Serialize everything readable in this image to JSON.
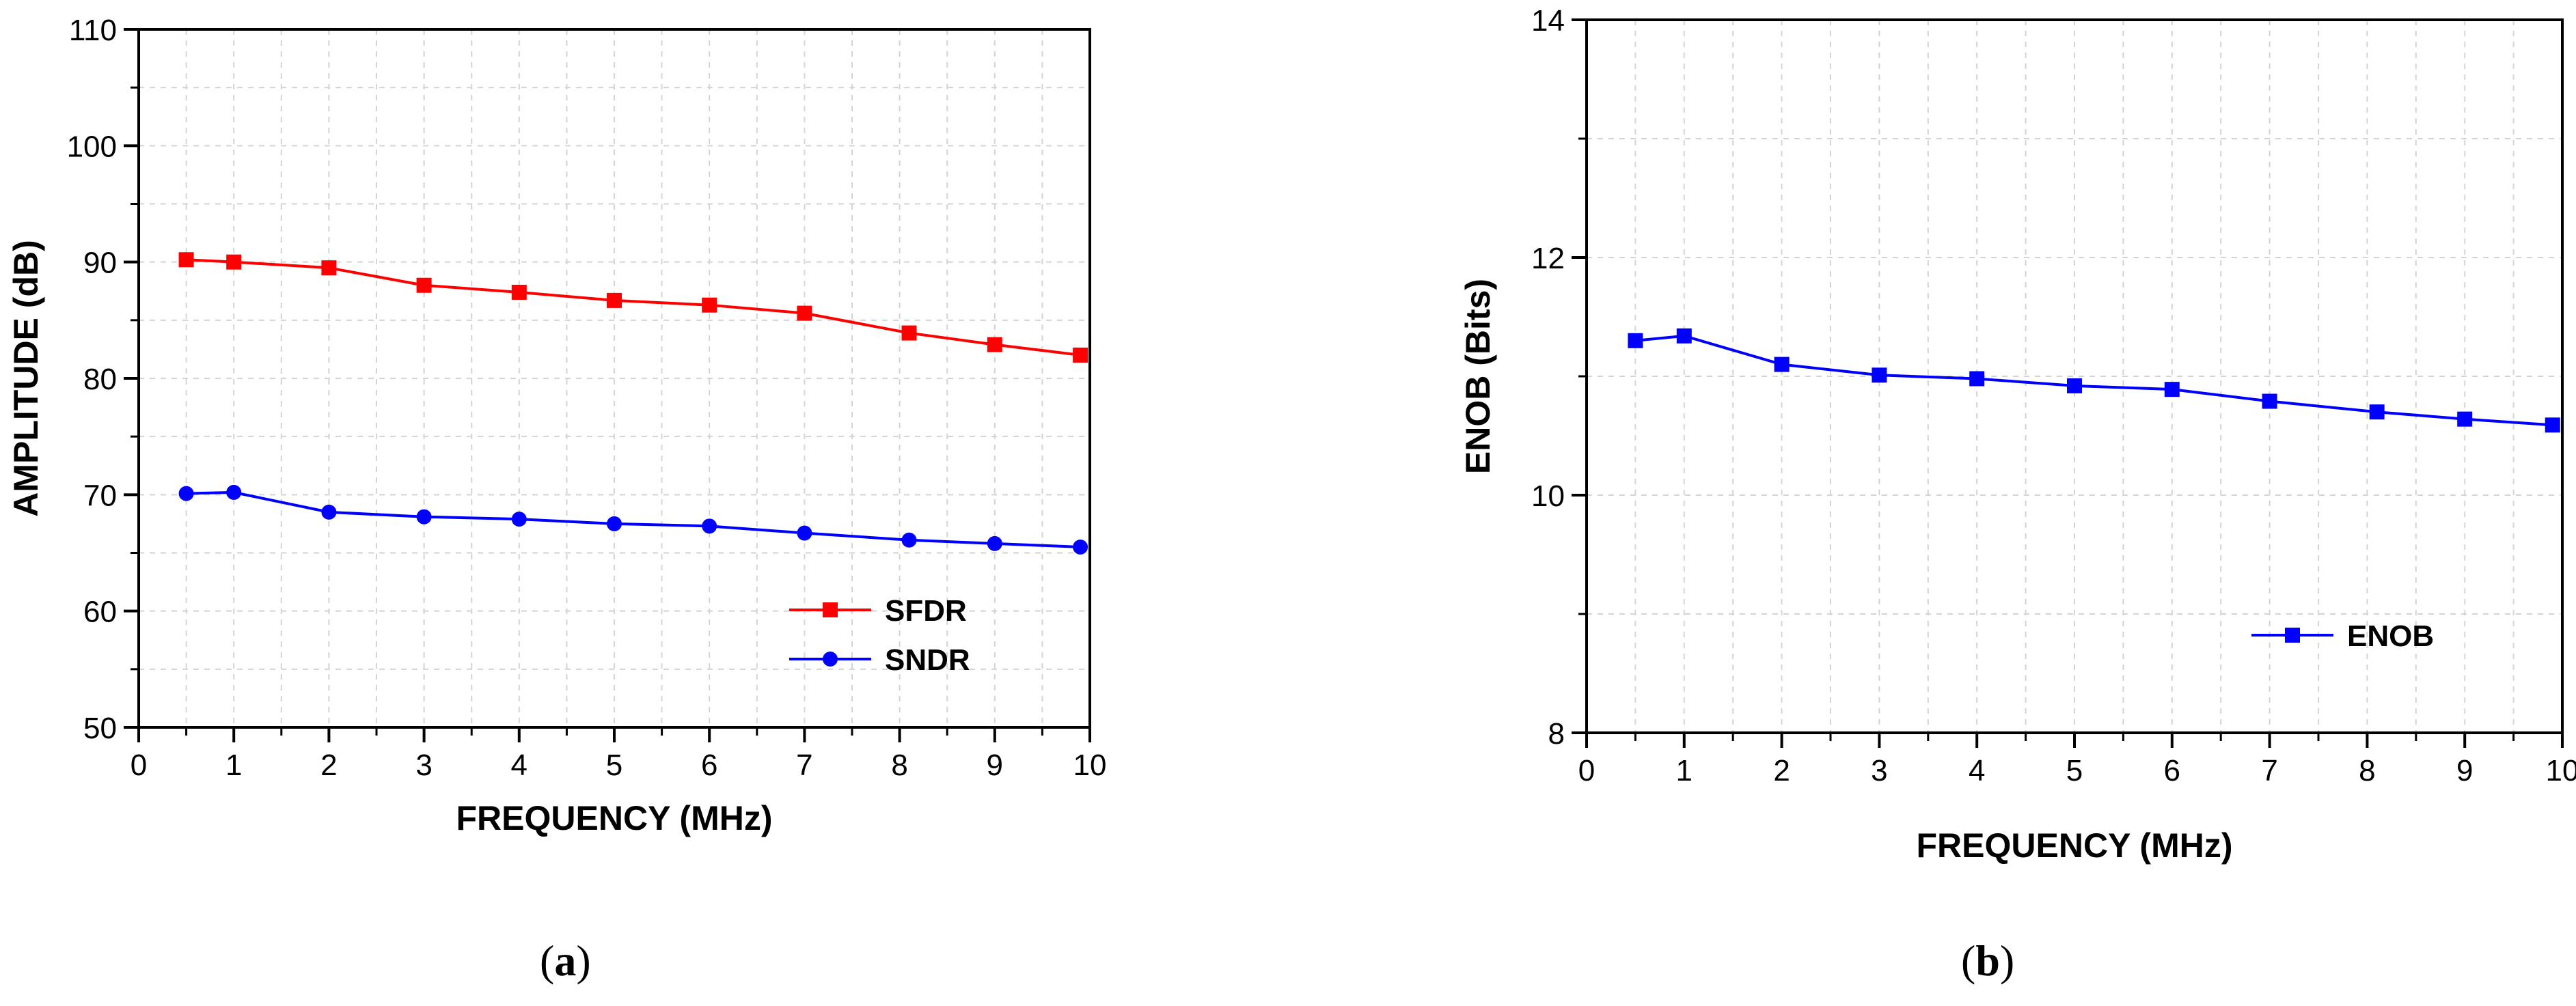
{
  "figure": {
    "caption_a": {
      "open": "(",
      "letter": "a",
      "close": ")"
    },
    "caption_b": {
      "open": "(",
      "letter": "b",
      "close": ")"
    }
  },
  "chart_data": [
    {
      "id": "a",
      "type": "line",
      "title": "",
      "xlabel": "FREQUENCY (MHz)",
      "ylabel": "AMPLITUDE (dB)",
      "xlim": [
        0,
        10
      ],
      "ylim": [
        50,
        110
      ],
      "xticks": [
        0,
        1,
        2,
        3,
        4,
        5,
        6,
        7,
        8,
        9,
        10
      ],
      "yticks": [
        50,
        60,
        70,
        80,
        90,
        100,
        110
      ],
      "grid": true,
      "legend_position": "bottom-right",
      "series": [
        {
          "name": "SFDR",
          "color": "#ff0000",
          "marker": "square",
          "x": [
            0.5,
            1,
            2,
            3,
            4,
            5,
            6,
            7,
            8.1,
            9,
            9.9
          ],
          "y": [
            90.2,
            90.0,
            89.5,
            88.0,
            87.4,
            86.7,
            86.3,
            85.6,
            83.9,
            82.9,
            82.0
          ]
        },
        {
          "name": "SNDR",
          "color": "#0000ff",
          "marker": "circle",
          "x": [
            0.5,
            1,
            2,
            3,
            4,
            5,
            6,
            7,
            8.1,
            9,
            9.9
          ],
          "y": [
            70.1,
            70.2,
            68.5,
            68.1,
            67.9,
            67.5,
            67.3,
            66.7,
            66.1,
            65.8,
            65.5
          ]
        }
      ]
    },
    {
      "id": "b",
      "type": "line",
      "title": "",
      "xlabel": "FREQUENCY (MHz)",
      "ylabel": "ENOB (Bits)",
      "xlim": [
        0,
        10
      ],
      "ylim": [
        8,
        14
      ],
      "xticks": [
        0,
        1,
        2,
        3,
        4,
        5,
        6,
        7,
        8,
        9,
        10
      ],
      "yticks": [
        8,
        10,
        12,
        14
      ],
      "grid": true,
      "legend_position": "bottom-right",
      "series": [
        {
          "name": "ENOB",
          "color": "#0000ff",
          "marker": "square",
          "x": [
            0.5,
            1,
            2,
            3,
            4,
            5,
            6,
            7,
            8.1,
            9,
            9.9
          ],
          "y": [
            11.3,
            11.34,
            11.1,
            11.01,
            10.98,
            10.92,
            10.89,
            10.79,
            10.7,
            10.64,
            10.59
          ]
        }
      ]
    }
  ]
}
